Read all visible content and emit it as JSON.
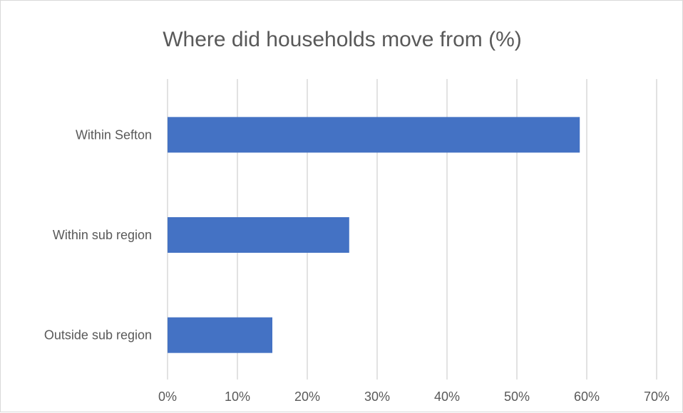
{
  "chart_data": {
    "type": "bar",
    "orientation": "horizontal",
    "title": "Where did households move from (%)",
    "categories": [
      "Within Sefton",
      "Within sub region",
      "Outside sub region"
    ],
    "values": [
      59,
      26,
      15
    ],
    "xlim": [
      0,
      70
    ],
    "x_ticks": [
      0,
      10,
      20,
      30,
      40,
      50,
      60,
      70
    ],
    "x_tick_labels": [
      "0%",
      "10%",
      "20%",
      "30%",
      "40%",
      "50%",
      "60%",
      "70%"
    ],
    "grid": "vertical",
    "legend": "none",
    "bar_color": "#4472C4"
  }
}
